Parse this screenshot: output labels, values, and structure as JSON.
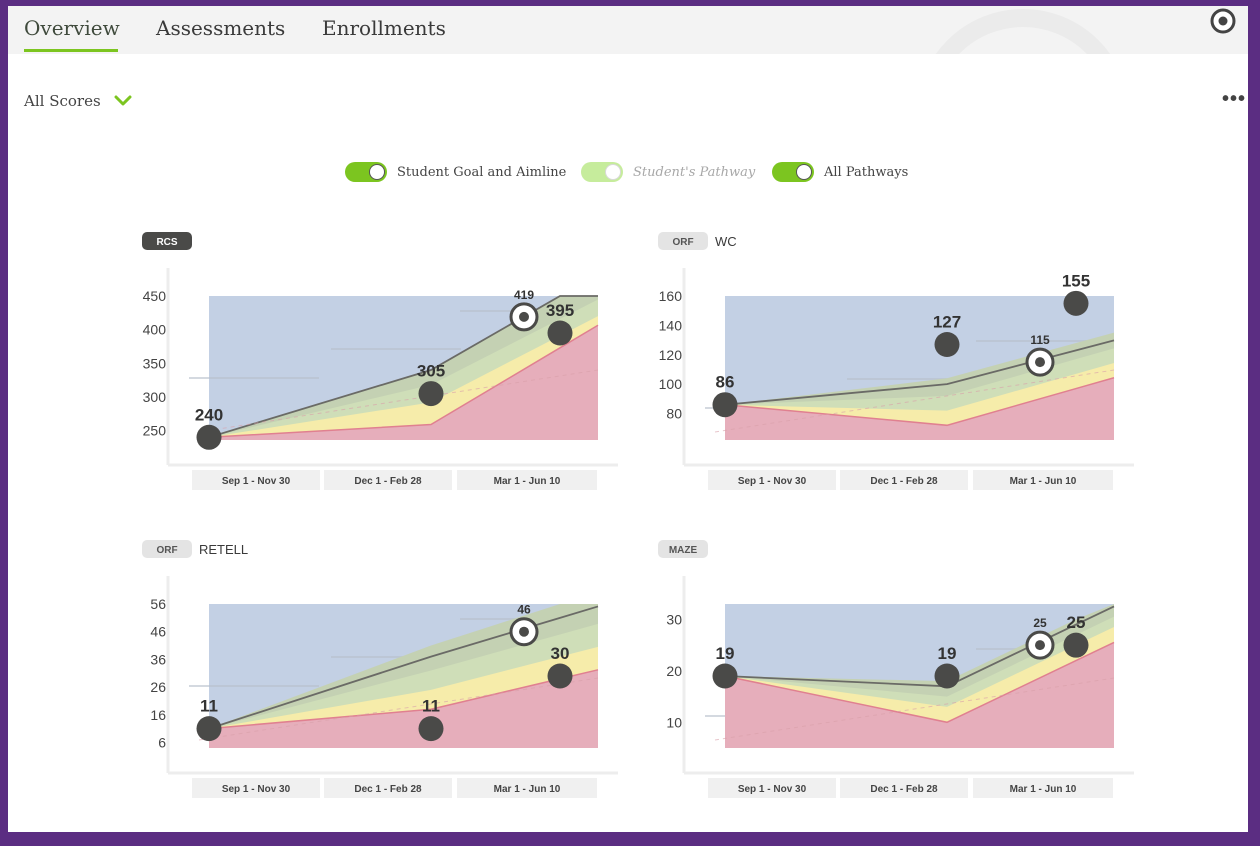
{
  "tabs": [
    {
      "label": "Overview",
      "active": true
    },
    {
      "label": "Assessments",
      "active": false
    },
    {
      "label": "Enrollments",
      "active": false
    }
  ],
  "filter": {
    "label": "All Scores",
    "icon": "chevron-down-icon"
  },
  "more_menu": {
    "label": "•••"
  },
  "toggles": [
    {
      "label": "Student Goal and Aimline",
      "on": true,
      "muted": false
    },
    {
      "label": "Student's Pathway",
      "on": true,
      "muted": true
    },
    {
      "label": "All Pathways",
      "on": true,
      "muted": false
    }
  ],
  "colors": {
    "accent": "#7cc520",
    "frame": "#5b2d82",
    "zone_blue": "#c3d0e4",
    "zone_green": "#cfdeb8",
    "zone_yellow": "#f6ecaa",
    "zone_red": "#e6aebb",
    "point": "#4a4a48"
  },
  "chart_data": [
    {
      "type": "line",
      "id": "rcs",
      "badge": "RCS",
      "badge_dark": true,
      "title": "",
      "categories": [
        "Sep 1 - Nov 30",
        "Dec 1 - Feb 28",
        "Mar 1 - Jun 10"
      ],
      "y_ticks": [
        250,
        300,
        350,
        400,
        450
      ],
      "ylim": [
        236,
        450
      ],
      "scores": [
        {
          "period": 0,
          "value": 240
        },
        {
          "period": 1,
          "value": 305
        },
        {
          "period": 2,
          "value": 395
        }
      ],
      "goal": {
        "period": 2,
        "value": 419
      },
      "aimline": [
        240,
        340,
        454
      ],
      "bands": {
        "red": [
          240,
          259,
          373
        ],
        "yellow": [
          240,
          292,
          391
        ],
        "green": [
          240,
          318,
          416
        ],
        "top": [
          240,
          340,
          454
        ]
      }
    },
    {
      "type": "line",
      "id": "wc",
      "badge": "ORF",
      "badge_dark": false,
      "title": "WC",
      "categories": [
        "Sep 1 - Nov 30",
        "Dec 1 - Feb 28",
        "Mar 1 - Jun 10"
      ],
      "y_ticks": [
        80,
        100,
        120,
        140,
        160
      ],
      "ylim": [
        62,
        160
      ],
      "scores": [
        {
          "period": 0,
          "value": 86
        },
        {
          "period": 1,
          "value": 127
        },
        {
          "period": 2,
          "value": 155
        }
      ],
      "goal": {
        "period": 2,
        "value": 115
      },
      "aimline": [
        86,
        100,
        123
      ],
      "bands": {
        "red": [
          86,
          72,
          97
        ],
        "yellow": [
          86,
          82,
          107
        ],
        "green": [
          86,
          92,
          117
        ],
        "top": [
          86,
          104,
          128
        ]
      }
    },
    {
      "type": "line",
      "id": "retell",
      "badge": "ORF",
      "badge_dark": false,
      "title": "RETELL",
      "categories": [
        "Sep 1 - Nov 30",
        "Dec 1 - Feb 28",
        "Mar 1 - Jun 10"
      ],
      "y_ticks": [
        6,
        16,
        26,
        36,
        46,
        56
      ],
      "ylim": [
        4,
        56
      ],
      "scores": [
        {
          "period": 0,
          "value": 11
        },
        {
          "period": 1,
          "value": 11
        },
        {
          "period": 2,
          "value": 30
        }
      ],
      "goal": {
        "period": 2,
        "value": 46
      },
      "aimline": [
        11,
        37,
        51
      ],
      "bands": {
        "red": [
          11,
          18,
          29
        ],
        "yellow": [
          11,
          25,
          37
        ],
        "green": [
          11,
          32,
          45
        ],
        "top": [
          11,
          41,
          56
        ]
      }
    },
    {
      "type": "line",
      "id": "maze",
      "badge": "MAZE",
      "badge_dark": false,
      "title": "",
      "categories": [
        "Sep 1 - Nov 30",
        "Dec 1 - Feb 28",
        "Mar 1 - Jun 10"
      ],
      "y_ticks": [
        10,
        20,
        30
      ],
      "ylim": [
        5,
        33
      ],
      "scores": [
        {
          "period": 0,
          "value": 19
        },
        {
          "period": 1,
          "value": 19
        },
        {
          "period": 2,
          "value": 25
        }
      ],
      "goal": {
        "period": 2,
        "value": 25
      },
      "aimline": [
        19,
        17,
        29
      ],
      "bands": {
        "red": [
          19,
          10,
          22
        ],
        "yellow": [
          19,
          13,
          25
        ],
        "green": [
          19,
          15,
          27
        ],
        "top": [
          19,
          18,
          30
        ]
      }
    }
  ]
}
